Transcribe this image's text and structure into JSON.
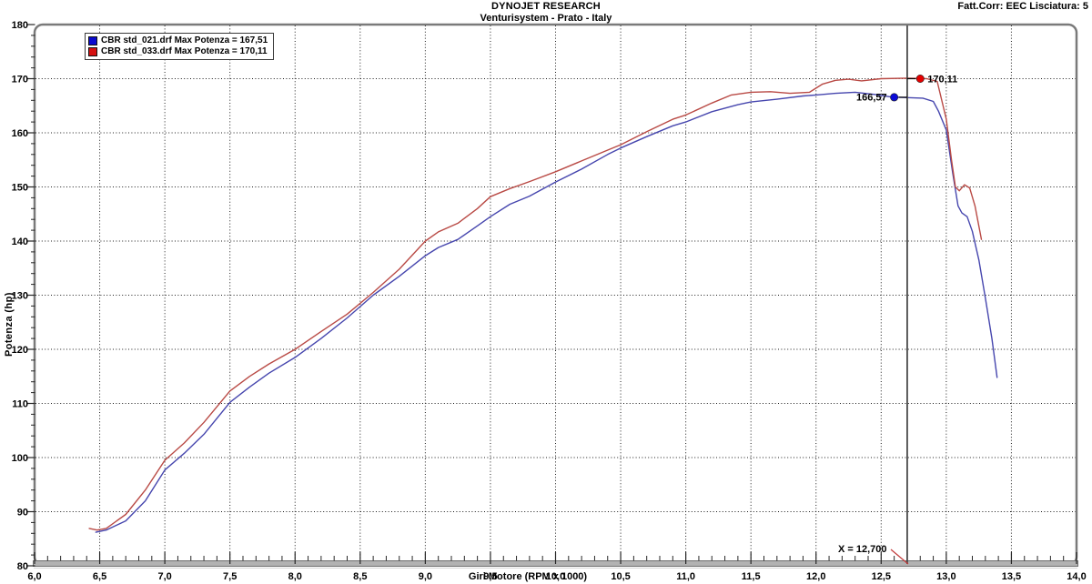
{
  "header": {
    "title": "DYNOJET RESEARCH",
    "subtitle": "Venturisystem - Prato - Italy",
    "correction": "Fatt.Corr: EEC  Lisciatura: 5"
  },
  "legend": {
    "items": [
      {
        "label": "CBR std_021.drf Max Potenza = 167,51",
        "color": "#0b0bcf"
      },
      {
        "label": "CBR std_033.drf Max Potenza = 170,11",
        "color": "#d51111"
      }
    ]
  },
  "chart_data": {
    "type": "line",
    "title": "DYNOJET RESEARCH",
    "subtitle": "Venturisystem - Prato - Italy",
    "xlabel": "Giri Motore (RPM x 1000)",
    "ylabel": "Potenza (hp)",
    "xlim": [
      6.0,
      14.0
    ],
    "ylim": [
      80,
      180
    ],
    "grid": true,
    "x_ticks": [
      {
        "value": 6.0,
        "label": "6,0"
      },
      {
        "value": 6.5,
        "label": "6,5"
      },
      {
        "value": 7.0,
        "label": "7,0"
      },
      {
        "value": 7.5,
        "label": "7,5"
      },
      {
        "value": 8.0,
        "label": "8,0"
      },
      {
        "value": 8.5,
        "label": "8,5"
      },
      {
        "value": 9.0,
        "label": "9,0"
      },
      {
        "value": 9.5,
        "label": "9,5"
      },
      {
        "value": 10.0,
        "label": "10,0"
      },
      {
        "value": 10.5,
        "label": "10,5"
      },
      {
        "value": 11.0,
        "label": "11,0"
      },
      {
        "value": 11.5,
        "label": "11,5"
      },
      {
        "value": 12.0,
        "label": "12,0"
      },
      {
        "value": 12.5,
        "label": "12,5"
      },
      {
        "value": 13.0,
        "label": "13,0"
      },
      {
        "value": 13.5,
        "label": "13,5"
      },
      {
        "value": 14.0,
        "label": "14,0"
      }
    ],
    "y_ticks": [
      {
        "value": 80,
        "label": "80"
      },
      {
        "value": 90,
        "label": "90"
      },
      {
        "value": 100,
        "label": "100"
      },
      {
        "value": 110,
        "label": "110"
      },
      {
        "value": 120,
        "label": "120"
      },
      {
        "value": 130,
        "label": "130"
      },
      {
        "value": 140,
        "label": "140"
      },
      {
        "value": 150,
        "label": "150"
      },
      {
        "value": 160,
        "label": "160"
      },
      {
        "value": 170,
        "label": "170"
      },
      {
        "value": 180,
        "label": "180"
      }
    ],
    "series": [
      {
        "name": "CBR std_021.drf",
        "max_potenza": "167,51",
        "color": "#4646ae",
        "points": [
          [
            6.47,
            86.2
          ],
          [
            6.55,
            86.6
          ],
          [
            6.7,
            88.3
          ],
          [
            6.85,
            92.0
          ],
          [
            7.0,
            97.7
          ],
          [
            7.15,
            100.8
          ],
          [
            7.3,
            104.3
          ],
          [
            7.5,
            110.2
          ],
          [
            7.65,
            113.0
          ],
          [
            7.8,
            115.6
          ],
          [
            8.0,
            118.5
          ],
          [
            8.2,
            122.0
          ],
          [
            8.4,
            125.8
          ],
          [
            8.6,
            130.0
          ],
          [
            8.8,
            133.5
          ],
          [
            9.0,
            137.3
          ],
          [
            9.1,
            138.8
          ],
          [
            9.25,
            140.3
          ],
          [
            9.4,
            142.8
          ],
          [
            9.5,
            144.5
          ],
          [
            9.65,
            146.8
          ],
          [
            9.8,
            148.3
          ],
          [
            10.0,
            150.9
          ],
          [
            10.2,
            153.3
          ],
          [
            10.4,
            156.0
          ],
          [
            10.5,
            157.2
          ],
          [
            10.7,
            159.3
          ],
          [
            10.9,
            161.3
          ],
          [
            11.0,
            162.0
          ],
          [
            11.2,
            163.9
          ],
          [
            11.4,
            165.2
          ],
          [
            11.5,
            165.7
          ],
          [
            11.7,
            166.2
          ],
          [
            11.9,
            166.8
          ],
          [
            12.0,
            167.0
          ],
          [
            12.15,
            167.3
          ],
          [
            12.3,
            167.5
          ],
          [
            12.45,
            167.1
          ],
          [
            12.58,
            166.6
          ],
          [
            12.7,
            166.5
          ],
          [
            12.82,
            166.4
          ],
          [
            12.9,
            165.8
          ],
          [
            12.94,
            164.0
          ],
          [
            13.0,
            160.5
          ],
          [
            13.05,
            152.5
          ],
          [
            13.09,
            146.5
          ],
          [
            13.12,
            145.2
          ],
          [
            13.16,
            144.5
          ],
          [
            13.2,
            141.8
          ],
          [
            13.25,
            136.5
          ],
          [
            13.3,
            129.5
          ],
          [
            13.35,
            122.0
          ],
          [
            13.39,
            114.8
          ]
        ]
      },
      {
        "name": "CBR std_033.drf",
        "max_potenza": "170,11",
        "color": "#b94a45",
        "points": [
          [
            6.42,
            86.9
          ],
          [
            6.48,
            86.6
          ],
          [
            6.55,
            86.9
          ],
          [
            6.7,
            89.5
          ],
          [
            6.85,
            94.0
          ],
          [
            7.0,
            99.5
          ],
          [
            7.15,
            102.7
          ],
          [
            7.3,
            106.5
          ],
          [
            7.5,
            112.3
          ],
          [
            7.65,
            115.0
          ],
          [
            7.8,
            117.3
          ],
          [
            8.0,
            120.0
          ],
          [
            8.2,
            123.3
          ],
          [
            8.4,
            126.5
          ],
          [
            8.6,
            130.5
          ],
          [
            8.8,
            134.8
          ],
          [
            9.0,
            140.0
          ],
          [
            9.1,
            141.7
          ],
          [
            9.25,
            143.3
          ],
          [
            9.4,
            146.0
          ],
          [
            9.5,
            148.2
          ],
          [
            9.65,
            149.7
          ],
          [
            9.8,
            151.0
          ],
          [
            10.0,
            152.8
          ],
          [
            10.2,
            154.8
          ],
          [
            10.4,
            156.8
          ],
          [
            10.5,
            157.8
          ],
          [
            10.7,
            160.2
          ],
          [
            10.9,
            162.5
          ],
          [
            11.0,
            163.3
          ],
          [
            11.2,
            165.5
          ],
          [
            11.35,
            167.0
          ],
          [
            11.5,
            167.5
          ],
          [
            11.65,
            167.6
          ],
          [
            11.8,
            167.3
          ],
          [
            11.95,
            167.5
          ],
          [
            12.05,
            169.0
          ],
          [
            12.15,
            169.7
          ],
          [
            12.25,
            169.9
          ],
          [
            12.35,
            169.6
          ],
          [
            12.5,
            170.0
          ],
          [
            12.7,
            170.1
          ],
          [
            12.85,
            170.0
          ],
          [
            12.93,
            169.5
          ],
          [
            13.0,
            162.5
          ],
          [
            13.04,
            155.0
          ],
          [
            13.07,
            150.0
          ],
          [
            13.1,
            149.3
          ],
          [
            13.14,
            150.4
          ],
          [
            13.18,
            149.8
          ],
          [
            13.22,
            146.5
          ],
          [
            13.27,
            140.3
          ]
        ]
      }
    ],
    "cursor": {
      "x": 12.7,
      "label": "X = 12,700"
    },
    "markers": [
      {
        "label": "170,11",
        "x": 12.8,
        "y": 170.0,
        "color": "#e60000",
        "side": "right"
      },
      {
        "label": "166,57",
        "x": 12.6,
        "y": 166.57,
        "color": "#0b0bd6",
        "side": "left"
      }
    ]
  }
}
